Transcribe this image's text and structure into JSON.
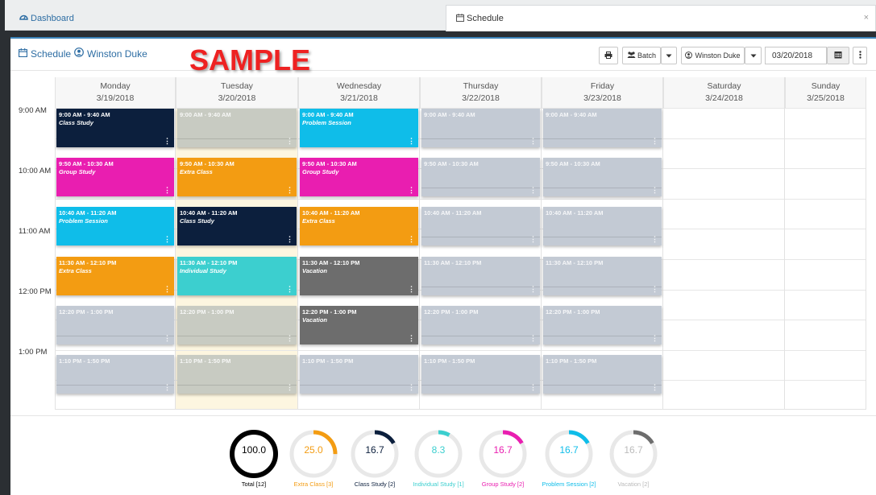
{
  "tabs": [
    {
      "label": "Dashboard",
      "icon": "dashboard-icon"
    },
    {
      "label": "Schedule",
      "icon": "calendar-icon",
      "active": true
    }
  ],
  "header": {
    "title": "Schedule",
    "user": "Winston Duke",
    "watermark": "SAMPLE"
  },
  "toolbar": {
    "batch_label": "Batch",
    "user_select": "Winston Duke",
    "date": "03/20/2018"
  },
  "days": [
    {
      "name": "Monday",
      "date": "3/19/2018"
    },
    {
      "name": "Tuesday",
      "date": "3/20/2018"
    },
    {
      "name": "Wednesday",
      "date": "3/21/2018"
    },
    {
      "name": "Thursday",
      "date": "3/22/2018"
    },
    {
      "name": "Friday",
      "date": "3/23/2018"
    },
    {
      "name": "Saturday",
      "date": "3/24/2018"
    },
    {
      "name": "Sunday",
      "date": "3/25/2018"
    }
  ],
  "times": [
    "9:00 AM",
    "10:00 AM",
    "11:00 AM",
    "12:00 PM",
    "1:00 PM"
  ],
  "colors": {
    "class_study": "#0c1f3d",
    "extra_class": "#f39c12",
    "group_study": "#e91eb0",
    "problem_session": "#0fbde9",
    "individual_study": "#3ccfcf",
    "vacation": "#6d6d6d",
    "empty_grey": "#c3cad4",
    "empty_today": "#c8cbc2",
    "today_bg": "#fdf6e0"
  },
  "events": [
    {
      "day": 0,
      "slot": 0,
      "time": "9:00 AM - 9:40 AM",
      "subject": "Class Study",
      "color": "#0c1f3d"
    },
    {
      "day": 0,
      "slot": 1,
      "time": "9:50 AM - 10:30 AM",
      "subject": "Group Study",
      "color": "#e91eb0"
    },
    {
      "day": 0,
      "slot": 2,
      "time": "10:40 AM - 11:20 AM",
      "subject": "Problem Session",
      "color": "#0fbde9"
    },
    {
      "day": 0,
      "slot": 3,
      "time": "11:30 AM - 12:10 PM",
      "subject": "Extra Class",
      "color": "#f39c12"
    },
    {
      "day": 0,
      "slot": 4,
      "time": "12:20 PM - 1:00 PM",
      "subject": "",
      "color": "#c3cad4"
    },
    {
      "day": 0,
      "slot": 5,
      "time": "1:10 PM - 1:50 PM",
      "subject": "",
      "color": "#c3cad4"
    },
    {
      "day": 1,
      "slot": 0,
      "time": "9:00 AM - 9:40 AM",
      "subject": "",
      "color": "#c8cbc2"
    },
    {
      "day": 1,
      "slot": 1,
      "time": "9:50 AM - 10:30 AM",
      "subject": "Extra Class",
      "color": "#f39c12"
    },
    {
      "day": 1,
      "slot": 2,
      "time": "10:40 AM - 11:20 AM",
      "subject": "Class Study",
      "color": "#0c1f3d"
    },
    {
      "day": 1,
      "slot": 3,
      "time": "11:30 AM - 12:10 PM",
      "subject": "Individual Study",
      "color": "#3ccfcf"
    },
    {
      "day": 1,
      "slot": 4,
      "time": "12:20 PM - 1:00 PM",
      "subject": "",
      "color": "#c8cbc2"
    },
    {
      "day": 1,
      "slot": 5,
      "time": "1:10 PM - 1:50 PM",
      "subject": "",
      "color": "#c8cbc2"
    },
    {
      "day": 2,
      "slot": 0,
      "time": "9:00 AM - 9:40 AM",
      "subject": "Problem Session",
      "color": "#0fbde9"
    },
    {
      "day": 2,
      "slot": 1,
      "time": "9:50 AM - 10:30 AM",
      "subject": "Group Study",
      "color": "#e91eb0"
    },
    {
      "day": 2,
      "slot": 2,
      "time": "10:40 AM - 11:20 AM",
      "subject": "Extra Class",
      "color": "#f39c12"
    },
    {
      "day": 2,
      "slot": 3,
      "time": "11:30 AM - 12:10 PM",
      "subject": "Vacation",
      "color": "#6d6d6d"
    },
    {
      "day": 2,
      "slot": 4,
      "time": "12:20 PM - 1:00 PM",
      "subject": "Vacation",
      "color": "#6d6d6d"
    },
    {
      "day": 2,
      "slot": 5,
      "time": "1:10 PM - 1:50 PM",
      "subject": "",
      "color": "#c3cad4"
    },
    {
      "day": 3,
      "slot": 0,
      "time": "9:00 AM - 9:40 AM",
      "subject": "",
      "color": "#c3cad4"
    },
    {
      "day": 3,
      "slot": 1,
      "time": "9:50 AM - 10:30 AM",
      "subject": "",
      "color": "#c3cad4"
    },
    {
      "day": 3,
      "slot": 2,
      "time": "10:40 AM - 11:20 AM",
      "subject": "",
      "color": "#c3cad4"
    },
    {
      "day": 3,
      "slot": 3,
      "time": "11:30 AM - 12:10 PM",
      "subject": "",
      "color": "#c3cad4"
    },
    {
      "day": 3,
      "slot": 4,
      "time": "12:20 PM - 1:00 PM",
      "subject": "",
      "color": "#c3cad4"
    },
    {
      "day": 3,
      "slot": 5,
      "time": "1:10 PM - 1:50 PM",
      "subject": "",
      "color": "#c3cad4"
    },
    {
      "day": 4,
      "slot": 0,
      "time": "9:00 AM - 9:40 AM",
      "subject": "",
      "color": "#c3cad4"
    },
    {
      "day": 4,
      "slot": 1,
      "time": "9:50 AM - 10:30 AM",
      "subject": "",
      "color": "#c3cad4"
    },
    {
      "day": 4,
      "slot": 2,
      "time": "10:40 AM - 11:20 AM",
      "subject": "",
      "color": "#c3cad4"
    },
    {
      "day": 4,
      "slot": 3,
      "time": "11:30 AM - 12:10 PM",
      "subject": "",
      "color": "#c3cad4"
    },
    {
      "day": 4,
      "slot": 4,
      "time": "12:20 PM - 1:00 PM",
      "subject": "",
      "color": "#c3cad4"
    },
    {
      "day": 4,
      "slot": 5,
      "time": "1:10 PM - 1:50 PM",
      "subject": "",
      "color": "#c3cad4"
    }
  ],
  "summary": [
    {
      "value": "100.0",
      "percent": 100,
      "label": "Total [12]",
      "color": "#000000",
      "text_color": "#000000"
    },
    {
      "value": "25.0",
      "percent": 25,
      "label": "Extra Class [3]",
      "color": "#f39c12",
      "text_color": "#f39c12"
    },
    {
      "value": "16.7",
      "percent": 16.7,
      "label": "Class Study [2]",
      "color": "#0c1f3d",
      "text_color": "#0c1f3d"
    },
    {
      "value": "8.3",
      "percent": 8.3,
      "label": "Individual Study [1]",
      "color": "#3ccfcf",
      "text_color": "#3ccfcf"
    },
    {
      "value": "16.7",
      "percent": 16.7,
      "label": "Group Study [2]",
      "color": "#e91eb0",
      "text_color": "#e91eb0"
    },
    {
      "value": "16.7",
      "percent": 16.7,
      "label": "Problem Session [2]",
      "color": "#0fbde9",
      "text_color": "#0fbde9"
    },
    {
      "value": "16.7",
      "percent": 16.7,
      "label": "Vacation [2]",
      "color": "#6d6d6d",
      "text_color": "#bbbbbb"
    }
  ]
}
